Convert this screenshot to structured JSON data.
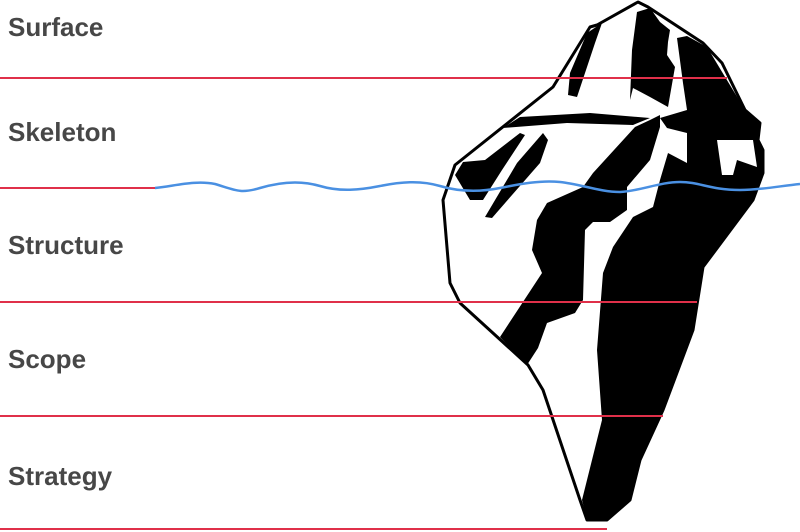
{
  "layers": [
    {
      "label": "Surface"
    },
    {
      "label": "Skeleton"
    },
    {
      "label": "Structure"
    },
    {
      "label": "Scope"
    },
    {
      "label": "Strategy"
    }
  ],
  "colors": {
    "divider": "#e0304a",
    "waterline": "#4a90e2",
    "iceberg": "#000000",
    "label": "#474747"
  },
  "icons": [
    "iceberg-illustration"
  ]
}
